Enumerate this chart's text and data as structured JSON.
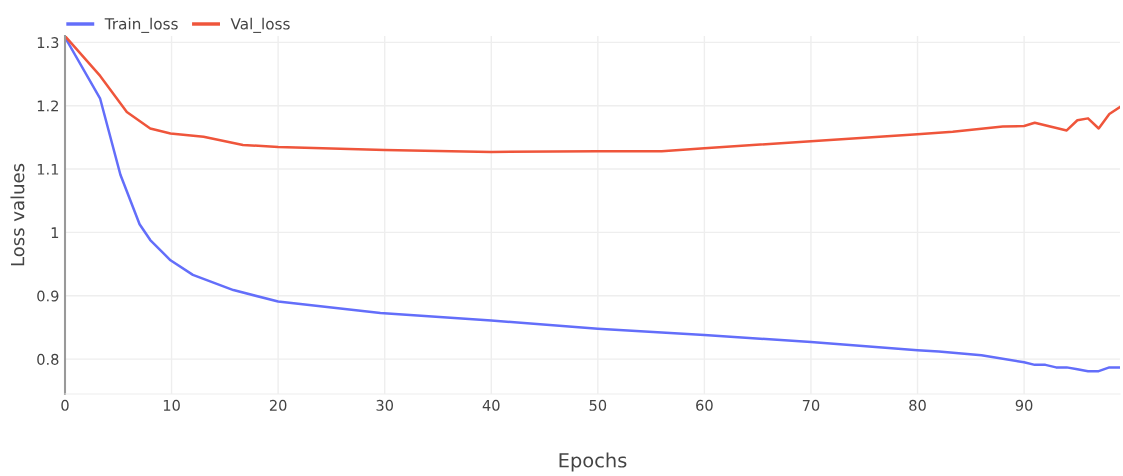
{
  "chart_data": {
    "type": "line",
    "xlabel": "Epochs",
    "ylabel": "Loss values",
    "xlim": [
      0,
      99
    ],
    "xticks": [
      0,
      10,
      20,
      30,
      40,
      50,
      60,
      70,
      80,
      90
    ],
    "ylim": [
      0.745,
      1.31
    ],
    "yticks": [
      0.8,
      0.9,
      {
        "value": 1.0,
        "label": "1"
      },
      1.1,
      1.2,
      1.3
    ],
    "grid": true,
    "legend": "top left",
    "marker": "none",
    "line_style": "solid",
    "series": [
      {
        "name": "Train_loss",
        "color": "#636efa",
        "x": [
          0,
          3.3,
          5.2,
          7,
          8,
          9.9,
          12,
          15.8,
          20,
          29.6,
          40,
          50,
          60,
          70,
          80,
          82,
          86,
          90,
          91,
          92,
          93,
          94,
          95,
          96,
          97,
          98,
          99
        ],
        "values": [
          1.308,
          1.211,
          1.091,
          1.013,
          0.988,
          0.956,
          0.933,
          0.909,
          0.891,
          0.873,
          0.861,
          0.848,
          0.838,
          0.827,
          0.814,
          0.812,
          0.806,
          0.795,
          0.791,
          0.791,
          0.787,
          0.787,
          0.784,
          0.781,
          0.781,
          0.787,
          0.787
        ]
      },
      {
        "name": "Val_loss",
        "color": "#ef553b",
        "x": [
          0,
          3.3,
          5.8,
          8,
          9.9,
          13,
          16.7,
          20,
          30,
          40,
          50,
          56,
          60,
          70,
          80,
          83.3,
          88,
          90,
          91,
          94,
          95,
          96,
          97,
          98,
          99
        ],
        "values": [
          1.31,
          1.247,
          1.19,
          1.164,
          1.156,
          1.151,
          1.138,
          1.135,
          1.13,
          1.127,
          1.128,
          1.128,
          1.133,
          1.144,
          1.155,
          1.159,
          1.167,
          1.168,
          1.173,
          1.161,
          1.177,
          1.18,
          1.164,
          1.187,
          1.198
        ]
      }
    ]
  }
}
